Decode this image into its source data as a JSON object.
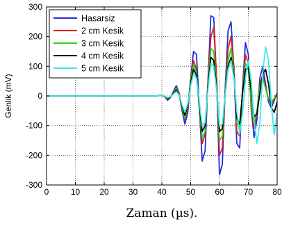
{
  "chart_data": {
    "type": "line",
    "title": "",
    "xlabel": "Zaman (µs).",
    "ylabel": "Genlik (mV)",
    "xlim": [
      0,
      80
    ],
    "ylim": [
      -300,
      300
    ],
    "xticks": [
      "0",
      "10",
      "20",
      "30",
      "40",
      "50",
      "60",
      "70",
      "80"
    ],
    "yticks": [
      "300",
      "200",
      "100",
      "0",
      "-100",
      "-200",
      "-300"
    ],
    "grid": true,
    "grid_style": "dotted",
    "legend_position": "top-left",
    "series": [
      {
        "name": "Hasarsiz",
        "color": "#1f2fd6",
        "x": [
          0,
          38,
          40,
          41,
          42,
          43,
          44,
          45,
          46,
          47,
          48,
          49,
          50,
          51,
          52,
          53,
          54,
          55,
          56,
          57,
          58,
          59,
          60,
          61,
          62,
          63,
          64,
          65,
          66,
          67,
          68,
          69,
          70,
          71,
          72,
          73,
          74,
          75,
          76,
          77,
          78,
          79,
          80
        ],
        "y": [
          0,
          0,
          3,
          -2,
          -15,
          -5,
          15,
          35,
          10,
          -50,
          -95,
          -55,
          60,
          150,
          140,
          -30,
          -220,
          -185,
          50,
          270,
          265,
          50,
          -265,
          -230,
          30,
          220,
          250,
          90,
          -160,
          -175,
          30,
          180,
          140,
          -40,
          -140,
          -80,
          60,
          100,
          40,
          -20,
          -40,
          -15,
          10
        ]
      },
      {
        "name": "2 cm Kesik",
        "color": "#e41a1c",
        "x": [
          0,
          38,
          40,
          41,
          42,
          43,
          44,
          45,
          46,
          47,
          48,
          49,
          50,
          51,
          52,
          53,
          54,
          55,
          56,
          57,
          58,
          59,
          60,
          61,
          62,
          63,
          64,
          65,
          66,
          67,
          68,
          69,
          70,
          71,
          72,
          73,
          74,
          75,
          76,
          77,
          78,
          79,
          80
        ],
        "y": [
          0,
          0,
          3,
          -2,
          -12,
          -4,
          12,
          28,
          8,
          -45,
          -80,
          -40,
          60,
          120,
          90,
          -40,
          -160,
          -130,
          50,
          200,
          230,
          60,
          -200,
          -175,
          20,
          160,
          200,
          100,
          -120,
          -135,
          20,
          140,
          110,
          -30,
          -110,
          -60,
          40,
          70,
          30,
          -10,
          -25,
          -10,
          5
        ]
      },
      {
        "name": "3 cm Kesik",
        "color": "#22d51c",
        "x": [
          0,
          38,
          40,
          41,
          42,
          43,
          44,
          45,
          46,
          47,
          48,
          49,
          50,
          51,
          52,
          53,
          54,
          55,
          56,
          57,
          58,
          59,
          60,
          61,
          62,
          63,
          64,
          65,
          66,
          67,
          68,
          69,
          70,
          71,
          72,
          73,
          74,
          75,
          76,
          77,
          78,
          79,
          80
        ],
        "y": [
          0,
          0,
          3,
          -2,
          -10,
          -3,
          10,
          25,
          5,
          -40,
          -75,
          -35,
          55,
          105,
          80,
          -40,
          -140,
          -120,
          40,
          160,
          150,
          40,
          -150,
          -135,
          15,
          120,
          160,
          80,
          -90,
          -110,
          15,
          110,
          90,
          -20,
          -90,
          -50,
          30,
          60,
          25,
          -10,
          -20,
          -8,
          5
        ]
      },
      {
        "name": "4 cm Kesik",
        "color": "#000000",
        "x": [
          0,
          38,
          40,
          41,
          42,
          43,
          44,
          45,
          46,
          47,
          48,
          49,
          50,
          51,
          52,
          53,
          54,
          55,
          56,
          57,
          58,
          59,
          60,
          61,
          62,
          63,
          64,
          65,
          66,
          67,
          68,
          69,
          70,
          71,
          72,
          73,
          74,
          75,
          76,
          77,
          78,
          79,
          80
        ],
        "y": [
          0,
          0,
          2,
          -2,
          -8,
          -3,
          8,
          20,
          5,
          -35,
          -65,
          -30,
          45,
          90,
          70,
          -30,
          -120,
          -100,
          30,
          130,
          120,
          30,
          -120,
          -110,
          10,
          100,
          130,
          70,
          -75,
          -95,
          10,
          90,
          95,
          20,
          -70,
          -60,
          10,
          75,
          90,
          40,
          -40,
          -55,
          -20
        ]
      },
      {
        "name": "5 cm Kesik",
        "color": "#3de8ea",
        "x": [
          0,
          38,
          40,
          41,
          42,
          43,
          44,
          45,
          46,
          47,
          48,
          49,
          50,
          51,
          52,
          53,
          54,
          55,
          56,
          57,
          58,
          59,
          60,
          61,
          62,
          63,
          64,
          65,
          66,
          67,
          68,
          69,
          70,
          71,
          72,
          73,
          74,
          75,
          76,
          77,
          78,
          79,
          80
        ],
        "y": [
          0,
          0,
          2,
          -1,
          -6,
          -2,
          6,
          15,
          4,
          -30,
          -55,
          -25,
          35,
          75,
          60,
          -20,
          -100,
          -90,
          20,
          110,
          100,
          20,
          -100,
          -95,
          5,
          90,
          120,
          60,
          -50,
          -130,
          -60,
          60,
          120,
          50,
          -80,
          -160,
          -90,
          80,
          165,
          120,
          -30,
          -130,
          -60
        ]
      }
    ]
  }
}
